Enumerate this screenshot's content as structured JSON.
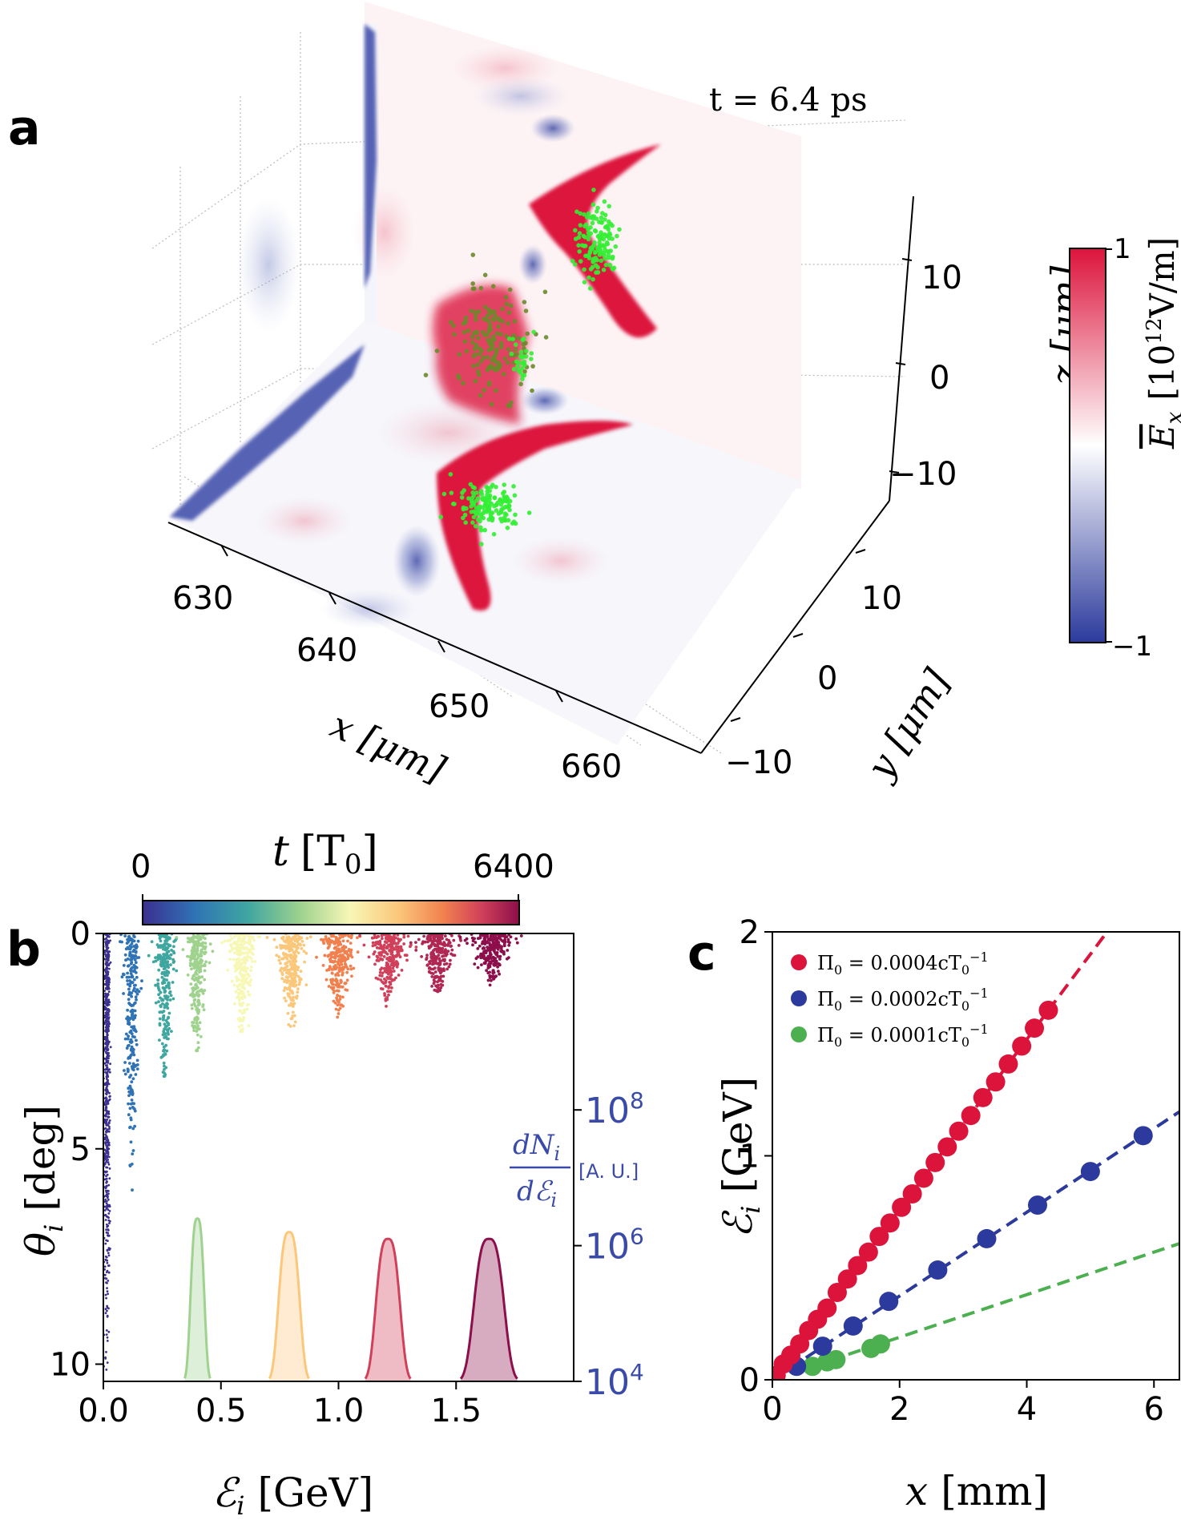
{
  "panel_labels": [
    "a",
    "b",
    "c"
  ],
  "colors": {
    "red": "#dc143c",
    "blue": "#2b3a9c",
    "green": "#4caf50",
    "particle_green": "#33ee33",
    "axis_blue": "#3a4aa8"
  },
  "chart_data": [
    {
      "panel": "a",
      "type": "heatmap",
      "title": "t = 6.4 ps",
      "xlabel": "x [μm]",
      "ylabel": "y [μm]",
      "zlabel": "z [μm]",
      "x_ticks": [
        "630",
        "640",
        "650",
        "660"
      ],
      "y_ticks": [
        "10",
        "0",
        "−10"
      ],
      "z_ticks": [
        "10",
        "0",
        "−10"
      ],
      "colorbar": {
        "label_prefix": "E",
        "label_subscript": "x",
        "label_units": "[10",
        "label_exp": "12",
        "label_units_end": "V/m]",
        "min_label": "−1",
        "max_label": "1",
        "range": [
          -1,
          1
        ],
        "colormap": [
          "#2b3a9c",
          "#ffffff",
          "#dc143c"
        ]
      },
      "particle_bunches": 4
    },
    {
      "panel": "b",
      "type": "scatter",
      "xlabel_main": "ℰ",
      "xlabel_sub": "i",
      "xlabel_units": "[GeV]",
      "ylabel_main": "θ",
      "ylabel_sub": "i",
      "ylabel_units": "[deg]",
      "xlim": [
        0,
        2.0
      ],
      "ylim": [
        10.4,
        0
      ],
      "x_ticks": [
        0.0,
        0.5,
        1.0,
        1.5
      ],
      "x_tick_labels": [
        "0.0",
        "0.5",
        "1.0",
        "1.5"
      ],
      "y_ticks": [
        0,
        5,
        10
      ],
      "y_tick_labels": [
        "0",
        "5",
        "10"
      ],
      "colorbar": {
        "label_main": "t",
        "label_units": "[T",
        "label_units_sub": "0",
        "label_units_end": "]",
        "min_label": "0",
        "max_label": "6400",
        "range": [
          0,
          6400
        ],
        "colormap": [
          "#3b2f8f",
          "#2f73b5",
          "#3fa6a0",
          "#9fd28e",
          "#f7f7b6",
          "#fbc77a",
          "#f1804e",
          "#d1405a",
          "#8c0e4a"
        ]
      },
      "right_axis": {
        "label_num": "dN",
        "label_num_sub": "i",
        "label_den": "dℰ",
        "label_den_sub": "i",
        "label_units": "[A. U.]",
        "ticks": [
          4,
          6,
          8
        ],
        "tick_base": "10",
        "tick_labels": [
          "4",
          "6",
          "8"
        ],
        "log_range": [
          4,
          10.6
        ]
      },
      "series": [
        {
          "time": 0,
          "energy": 0.015,
          "theta_max": 10.2
        },
        {
          "time": 800,
          "energy": 0.12,
          "theta_max": 6.0
        },
        {
          "time": 1600,
          "energy": 0.26,
          "theta_max": 3.4
        },
        {
          "time": 2400,
          "energy": 0.4,
          "theta_max": 2.8
        },
        {
          "time": 3200,
          "energy": 0.59,
          "theta_max": 2.4
        },
        {
          "time": 4000,
          "energy": 0.8,
          "theta_max": 2.2
        },
        {
          "time": 4800,
          "energy": 1.0,
          "theta_max": 2.0
        },
        {
          "time": 5600,
          "energy": 1.21,
          "theta_max": 1.7
        },
        {
          "time": 6000,
          "energy": 1.42,
          "theta_max": 1.4
        },
        {
          "time": 6400,
          "energy": 1.65,
          "theta_max": 1.2
        }
      ],
      "spectra": [
        {
          "time": 2400,
          "center": 0.4,
          "width": 0.045,
          "peak_log": 6.4
        },
        {
          "time": 4000,
          "center": 0.79,
          "width": 0.07,
          "peak_log": 6.2
        },
        {
          "time": 5600,
          "center": 1.21,
          "width": 0.08,
          "peak_log": 6.1
        },
        {
          "time": 6400,
          "center": 1.64,
          "width": 0.1,
          "peak_log": 6.1
        }
      ]
    },
    {
      "panel": "c",
      "type": "scatter",
      "xlabel_main": "x",
      "xlabel_units": "[mm]",
      "ylabel_main": "ℰ",
      "ylabel_sub": "i",
      "ylabel_units": "[GeV]",
      "xlim": [
        0,
        6.4
      ],
      "ylim": [
        0,
        2.0
      ],
      "x_ticks": [
        0,
        2,
        4,
        6
      ],
      "x_tick_labels": [
        "0",
        "2",
        "4",
        "6"
      ],
      "y_ticks": [
        0,
        1,
        2
      ],
      "y_tick_labels": [
        "0",
        "1",
        "2"
      ],
      "legend": "top-left",
      "series": [
        {
          "name_main": "Π",
          "name_sub": "0",
          "name_value": " = 0.0004cT",
          "name_exp_sub": "0",
          "name_exp": "−1",
          "color": "#dc143c",
          "slope": 0.38,
          "x": [
            0.06,
            0.17,
            0.29,
            0.43,
            0.57,
            0.71,
            0.86,
            1.02,
            1.18,
            1.34,
            1.51,
            1.68,
            1.85,
            2.03,
            2.2,
            2.38,
            2.56,
            2.75,
            2.93,
            3.12,
            3.31,
            3.51,
            3.71,
            3.92,
            4.12,
            4.34
          ],
          "y": [
            0.02,
            0.07,
            0.11,
            0.16,
            0.22,
            0.27,
            0.32,
            0.39,
            0.45,
            0.51,
            0.57,
            0.64,
            0.7,
            0.77,
            0.83,
            0.9,
            0.97,
            1.04,
            1.11,
            1.18,
            1.26,
            1.33,
            1.41,
            1.49,
            1.57,
            1.65
          ]
        },
        {
          "name_main": "Π",
          "name_sub": "0",
          "name_value": " = 0.0002cT",
          "name_exp_sub": "0",
          "name_exp": "−1",
          "color": "#2b3a9c",
          "slope": 0.187,
          "x": [
            0.38,
            0.79,
            1.27,
            1.83,
            2.6,
            3.37,
            4.17,
            5.0,
            5.83
          ],
          "y": [
            0.06,
            0.15,
            0.24,
            0.35,
            0.49,
            0.63,
            0.78,
            0.93,
            1.09
          ]
        },
        {
          "name_main": "Π",
          "name_sub": "0",
          "name_value": " = 0.0001cT",
          "name_exp_sub": "0",
          "name_exp": "−1",
          "color": "#4caf50",
          "slope": 0.095,
          "x": [
            0.63,
            0.86,
            1.0,
            1.55,
            1.7
          ],
          "y": [
            0.06,
            0.08,
            0.09,
            0.14,
            0.16
          ]
        }
      ]
    }
  ]
}
